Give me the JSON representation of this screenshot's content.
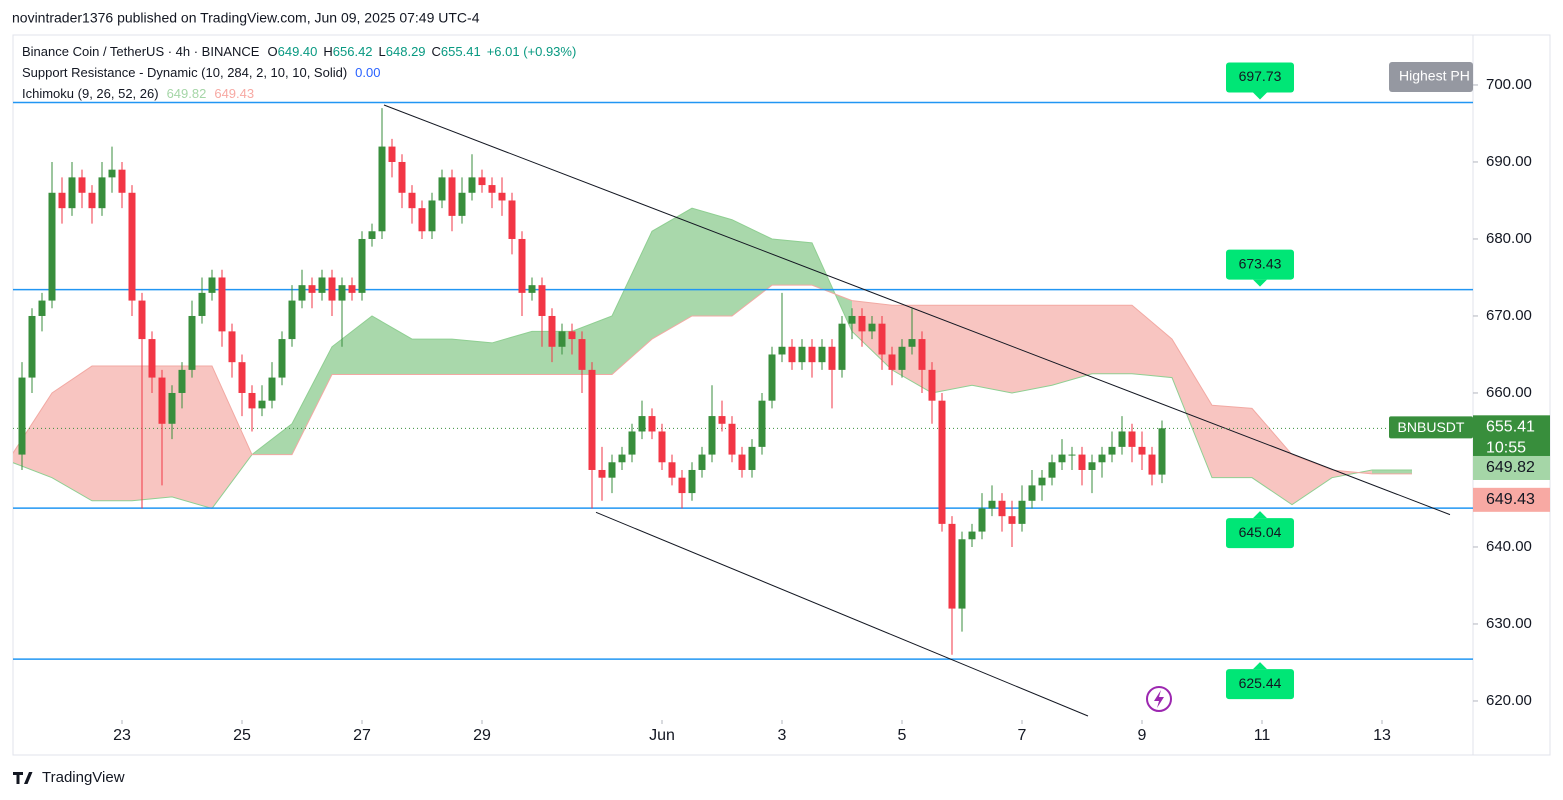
{
  "header": {
    "published": "novintrader1376 published on TradingView.com, Jun 09, 2025 07:49 UTC-4",
    "symbol": "Binance Coin / TetherUS · 4h · BINANCE",
    "o_label": "O",
    "o": "649.40",
    "h_label": "H",
    "h": "656.42",
    "l_label": "L",
    "l": "648.29",
    "c_label": "C",
    "c": "655.41",
    "change": "+6.01 (+0.93%)",
    "sr_indicator": "Support Resistance - Dynamic (10, 284, 2, 10, 10, Solid)",
    "sr_value": "0.00",
    "ichimoku": "Ichimoku (9, 26, 52, 26)",
    "ichimoku_a": "649.82",
    "ichimoku_b": "649.43",
    "ticker": "BNBUSDT",
    "countdown": "10:55",
    "highest_label": "Highest PH",
    "brand": "TradingView"
  },
  "chart_data": {
    "type": "candlestick",
    "up_color": "#388e3c",
    "down_color": "#f23645",
    "xlim": [
      -43.6,
      540.4
    ],
    "ylim": [
      617.53,
      706.49
    ],
    "xticks": [
      {
        "value": 0,
        "label": "23"
      },
      {
        "value": 48,
        "label": "25"
      },
      {
        "value": 96,
        "label": "27"
      },
      {
        "value": 144,
        "label": "29"
      },
      {
        "value": 216,
        "label": "Jun"
      },
      {
        "value": 264,
        "label": "3"
      },
      {
        "value": 312,
        "label": "5"
      },
      {
        "value": 360,
        "label": "7"
      },
      {
        "value": 408,
        "label": "9"
      },
      {
        "value": 456,
        "label": "11"
      },
      {
        "value": 504,
        "label": "13"
      }
    ],
    "yticks": [
      {
        "value": 620,
        "label": "620.00"
      },
      {
        "value": 630,
        "label": "630.00"
      },
      {
        "value": 640,
        "label": "640.00"
      },
      {
        "value": 650,
        "label": "650.00"
      },
      {
        "value": 660,
        "label": "660.00"
      },
      {
        "value": 670,
        "label": "670.00"
      },
      {
        "value": 680,
        "label": "680.00"
      },
      {
        "value": 690,
        "label": "690.00"
      },
      {
        "value": 700,
        "label": "700.00"
      }
    ],
    "x": [
      -40,
      -36,
      -32,
      -28,
      -24,
      -20,
      -16,
      -12,
      -8,
      -4,
      0,
      4,
      8,
      12,
      16,
      20,
      24,
      28,
      32,
      36,
      40,
      44,
      48,
      52,
      56,
      60,
      64,
      68,
      72,
      76,
      80,
      84,
      88,
      92,
      96,
      100,
      104,
      108,
      112,
      116,
      120,
      124,
      128,
      132,
      136,
      140,
      144,
      148,
      152,
      156,
      160,
      164,
      168,
      172,
      176,
      180,
      184,
      188,
      192,
      196,
      200,
      204,
      208,
      212,
      216,
      220,
      224,
      228,
      232,
      236,
      240,
      244,
      248,
      252,
      256,
      260,
      264,
      268,
      272,
      276,
      280,
      284,
      288,
      292,
      296,
      300,
      304,
      308,
      312,
      316,
      320,
      324,
      328,
      332,
      336,
      340,
      344,
      348,
      352,
      356,
      360,
      364,
      368,
      372,
      376,
      380,
      384,
      388,
      392,
      396,
      400,
      404,
      408,
      412,
      416
    ],
    "ohlc": [
      [
        652,
        664,
        650,
        662
      ],
      [
        662,
        671,
        660,
        670
      ],
      [
        670,
        673,
        668,
        672
      ],
      [
        672,
        690,
        671,
        686
      ],
      [
        686,
        688,
        682,
        684
      ],
      [
        684,
        690,
        683,
        688
      ],
      [
        688,
        689,
        684,
        686
      ],
      [
        686,
        687,
        682,
        684
      ],
      [
        684,
        690,
        683,
        688
      ],
      [
        688,
        692,
        686,
        689
      ],
      [
        689,
        690,
        684,
        686
      ],
      [
        686,
        687,
        670,
        672
      ],
      [
        672,
        673,
        645,
        667
      ],
      [
        667,
        668,
        660,
        662
      ],
      [
        662,
        663,
        648,
        656
      ],
      [
        656,
        661,
        654,
        660
      ],
      [
        660,
        664,
        658,
        663
      ],
      [
        663,
        672,
        662,
        670
      ],
      [
        670,
        675,
        669,
        673
      ],
      [
        673,
        676,
        672,
        675
      ],
      [
        675,
        676,
        666,
        668
      ],
      [
        668,
        669,
        662,
        664
      ],
      [
        664,
        665,
        657,
        660
      ],
      [
        660,
        661,
        655,
        658
      ],
      [
        658,
        661,
        657,
        659
      ],
      [
        659,
        664,
        658,
        662
      ],
      [
        662,
        668,
        661,
        667
      ],
      [
        667,
        674,
        666,
        672
      ],
      [
        672,
        676,
        671,
        674
      ],
      [
        674,
        675,
        671,
        673
      ],
      [
        673,
        676,
        672,
        675
      ],
      [
        675,
        676,
        670,
        672
      ],
      [
        672,
        675,
        666,
        674
      ],
      [
        674,
        675,
        672,
        673
      ],
      [
        673,
        681,
        672,
        680
      ],
      [
        680,
        682,
        679,
        681
      ],
      [
        681,
        697,
        680,
        692
      ],
      [
        692,
        693,
        688,
        690
      ],
      [
        690,
        691,
        684,
        686
      ],
      [
        686,
        687,
        682,
        684
      ],
      [
        684,
        685,
        680,
        681
      ],
      [
        681,
        686,
        680,
        685
      ],
      [
        685,
        689,
        684,
        688
      ],
      [
        688,
        689,
        681,
        683
      ],
      [
        683,
        688,
        682,
        686
      ],
      [
        686,
        691,
        685,
        688
      ],
      [
        688,
        689,
        686,
        687
      ],
      [
        687,
        688,
        684,
        686
      ],
      [
        686,
        688,
        683,
        685
      ],
      [
        685,
        686,
        678,
        680
      ],
      [
        680,
        681,
        670,
        673
      ],
      [
        673,
        675,
        672,
        674
      ],
      [
        674,
        675,
        666,
        670
      ],
      [
        670,
        671,
        664,
        666
      ],
      [
        666,
        669,
        665,
        668
      ],
      [
        668,
        669,
        665,
        667
      ],
      [
        667,
        668,
        660,
        663
      ],
      [
        663,
        664,
        645,
        650
      ],
      [
        650,
        653,
        646,
        649
      ],
      [
        649,
        652,
        647,
        651
      ],
      [
        651,
        653,
        650,
        652
      ],
      [
        652,
        656,
        651,
        655
      ],
      [
        655,
        659,
        654,
        657
      ],
      [
        657,
        658,
        654,
        655
      ],
      [
        655,
        656,
        650,
        651
      ],
      [
        651,
        652,
        648,
        649
      ],
      [
        649,
        650,
        645,
        647
      ],
      [
        647,
        651,
        646,
        650
      ],
      [
        650,
        653,
        649,
        652
      ],
      [
        652,
        661,
        651,
        657
      ],
      [
        657,
        659,
        655,
        656
      ],
      [
        656,
        657,
        651,
        652
      ],
      [
        652,
        653,
        649,
        650
      ],
      [
        650,
        654,
        649,
        653
      ],
      [
        653,
        660,
        652,
        659
      ],
      [
        659,
        666,
        658,
        665
      ],
      [
        665,
        673,
        664,
        666
      ],
      [
        666,
        667,
        663,
        664
      ],
      [
        664,
        667,
        663,
        666
      ],
      [
        666,
        667,
        662,
        664
      ],
      [
        664,
        667,
        663,
        666
      ],
      [
        666,
        667,
        658,
        663
      ],
      [
        663,
        670,
        662,
        669
      ],
      [
        669,
        671,
        667,
        670
      ],
      [
        670,
        671,
        666,
        668
      ],
      [
        668,
        670,
        667,
        669
      ],
      [
        669,
        670,
        663,
        665
      ],
      [
        665,
        666,
        661,
        663
      ],
      [
        663,
        667,
        662,
        666
      ],
      [
        666,
        671,
        665,
        667
      ],
      [
        667,
        668,
        660,
        663
      ],
      [
        663,
        664,
        656,
        659
      ],
      [
        659,
        660,
        642,
        643
      ],
      [
        643,
        644,
        626,
        632
      ],
      [
        632,
        642,
        629,
        641
      ],
      [
        641,
        643,
        640,
        642
      ],
      [
        642,
        647,
        641,
        645
      ],
      [
        645,
        648,
        644,
        646
      ],
      [
        646,
        647,
        642,
        644
      ],
      [
        644,
        646,
        640,
        643
      ],
      [
        643,
        648,
        642,
        646
      ],
      [
        646,
        650,
        645,
        648
      ],
      [
        648,
        650,
        646,
        649
      ],
      [
        649,
        652,
        648,
        651
      ],
      [
        651,
        654,
        650,
        652
      ],
      [
        652,
        653,
        650,
        652
      ],
      [
        652,
        653,
        648,
        650
      ],
      [
        650,
        652,
        647,
        651
      ],
      [
        651,
        653,
        649,
        652
      ],
      [
        652,
        655,
        651,
        653
      ],
      [
        653,
        657,
        652,
        655
      ],
      [
        655,
        656,
        651,
        653
      ],
      [
        653,
        655,
        650,
        652
      ],
      [
        652,
        653,
        648,
        649.4
      ],
      [
        649.4,
        656.42,
        648.29,
        655.41
      ]
    ],
    "ichimoku": {
      "x": [
        -44,
        -28,
        -12,
        4,
        20,
        36,
        52,
        68,
        84,
        100,
        116,
        132,
        148,
        164,
        180,
        196,
        212,
        228,
        244,
        260,
        276,
        292,
        308,
        324,
        340,
        356,
        372,
        388,
        404,
        420,
        436,
        452,
        468,
        484,
        500,
        516
      ],
      "span_a": [
        651,
        649,
        646,
        646,
        646.5,
        645,
        652,
        656,
        666,
        670,
        667,
        667,
        666.5,
        668,
        668,
        670,
        681,
        684,
        682.5,
        680,
        679.5,
        668,
        663,
        660,
        661,
        660,
        661,
        662.5,
        662.5,
        662,
        649,
        649,
        645.5,
        649,
        650,
        650
      ],
      "span_b": [
        652,
        660,
        663.5,
        663.5,
        663.5,
        663.5,
        652,
        652,
        662.4,
        662.4,
        662.4,
        662.4,
        662.4,
        662.4,
        662.4,
        662.4,
        667,
        670,
        670,
        674,
        674,
        672,
        671.4,
        671.4,
        671.4,
        671.4,
        671.4,
        671.4,
        671.4,
        667,
        658.4,
        658,
        652,
        650,
        649.5,
        649.5
      ],
      "up_fill": "#a9d8ab",
      "down_fill": "#f8c5c1",
      "a_color": "#8fcf92",
      "b_color": "#f2a9a3"
    },
    "levels": [
      697.73,
      673.43,
      645.04,
      625.44
    ],
    "level_color": "#2196f3",
    "label_color": "#00e676",
    "trendlines": [
      {
        "x": [
          104.8,
          531.2
        ],
        "y": [
          697.4,
          644.2
        ]
      },
      {
        "x": [
          189.6,
          386.4
        ],
        "y": [
          644.5,
          618.05
        ]
      }
    ]
  }
}
